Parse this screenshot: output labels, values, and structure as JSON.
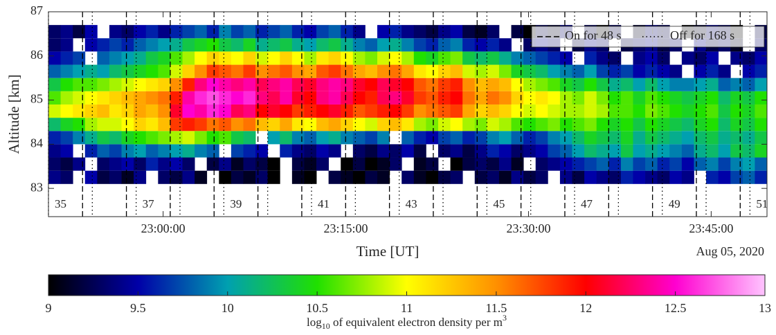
{
  "chart_data": {
    "type": "heatmap",
    "ylabel": "Altitude [km]",
    "xlabel": "Time [UT]",
    "date": "Aug 05, 2020",
    "xlim": [
      "22:50:35",
      "23:49:35"
    ],
    "xticks": [
      "23:00:00",
      "23:15:00",
      "23:30:00",
      "23:45:00"
    ],
    "ylim": [
      82.36,
      87
    ],
    "yticks": [
      83,
      84,
      85,
      86,
      87
    ],
    "x_edges": [
      "22:50:35",
      "22:51:35",
      "22:52:35",
      "22:53:35",
      "22:54:35",
      "22:55:35",
      "22:56:35",
      "22:57:35",
      "22:58:35",
      "22:59:35",
      "23:00:35",
      "23:01:35",
      "23:02:35",
      "23:03:35",
      "23:04:35",
      "23:05:35",
      "23:06:35",
      "23:07:35",
      "23:08:35",
      "23:09:35",
      "23:10:35",
      "23:11:35",
      "23:12:35",
      "23:13:35",
      "23:14:35",
      "23:15:35",
      "23:16:35",
      "23:17:35",
      "23:18:35",
      "23:19:35",
      "23:20:35",
      "23:21:35",
      "23:22:35",
      "23:23:35",
      "23:24:35",
      "23:25:35",
      "23:26:35",
      "23:27:35",
      "23:28:35",
      "23:29:35",
      "23:30:35",
      "23:31:35",
      "23:32:35",
      "23:33:35",
      "23:34:35",
      "23:35:35",
      "23:36:35",
      "23:37:35",
      "23:38:35",
      "23:39:35",
      "23:40:35",
      "23:41:35",
      "23:42:35",
      "23:43:35",
      "23:44:35",
      "23:45:35",
      "23:46:35",
      "23:47:35",
      "23:48:35",
      "23:49:35"
    ],
    "y_edges": [
      83.1,
      83.4,
      83.7,
      84.0,
      84.3,
      84.6,
      84.9,
      85.2,
      85.5,
      85.8,
      86.1,
      86.4,
      86.7
    ],
    "z": [
      [
        9.4,
        9.3,
        null,
        9.5,
        9.2,
        9.3,
        9.1,
        9.4,
        null,
        9.3,
        9.2,
        9.4,
        9.1,
        null,
        9.0,
        9.2,
        9.1,
        9.3,
        9.0,
        null,
        9.1,
        9.0,
        null,
        9.2,
        9.1,
        9.0,
        9.2,
        9.1,
        null,
        9.3,
        9.1,
        9.0,
        9.2,
        9.3,
        null,
        9.2,
        9.3,
        9.1,
        9.4,
        9.2,
        9.3,
        null,
        9.4,
        9.2,
        9.5,
        9.4,
        9.3,
        9.6,
        9.5,
        9.4,
        9.3,
        9.5,
        9.4,
        null,
        9.6,
        9.5,
        9.7,
        9.8,
        9.6
      ],
      [
        9.3,
        9.2,
        9.4,
        null,
        9.3,
        9.4,
        9.5,
        9.3,
        9.6,
        9.4,
        9.5,
        9.3,
        null,
        9.2,
        9.4,
        9.1,
        9.3,
        9.2,
        9.0,
        null,
        9.2,
        9.1,
        9.3,
        null,
        9.0,
        9.2,
        9.0,
        9.1,
        9.3,
        null,
        9.1,
        9.2,
        null,
        9.0,
        9.2,
        9.3,
        9.2,
        9.4,
        9.1,
        null,
        9.3,
        9.4,
        9.5,
        9.6,
        9.7,
        9.8,
        9.6,
        9.9,
        9.7,
        9.8,
        9.6,
        9.7,
        9.5,
        9.8,
        9.9,
        9.7,
        9.9,
        10.0,
        9.8
      ],
      [
        9.4,
        9.5,
        null,
        9.6,
        9.8,
        9.7,
        9.9,
        10.0,
        9.8,
        9.9,
        10.0,
        10.1,
        9.9,
        9.8,
        null,
        9.7,
        9.6,
        9.5,
        null,
        9.6,
        9.4,
        9.3,
        9.5,
        9.4,
        null,
        9.3,
        9.2,
        9.4,
        9.3,
        9.5,
        9.2,
        null,
        9.3,
        9.4,
        9.2,
        9.4,
        9.6,
        9.5,
        9.3,
        9.4,
        9.5,
        9.7,
        9.8,
        10.0,
        10.2,
        10.1,
        10.0,
        10.3,
        10.0,
        10.1,
        10.0,
        9.9,
        9.8,
        10.1,
        10.2,
        10.0,
        10.3,
        10.2,
        10.4
      ],
      [
        9.6,
        9.7,
        9.9,
        10.1,
        10.3,
        10.2,
        10.4,
        10.5,
        10.6,
        10.7,
        10.8,
        10.9,
        10.7,
        10.5,
        10.6,
        10.3,
        10.2,
        null,
        10.0,
        10.2,
        9.9,
        9.8,
        10.0,
        10.1,
        9.9,
        9.8,
        9.7,
        9.9,
        null,
        9.8,
        9.6,
        9.5,
        9.7,
        9.8,
        9.6,
        9.7,
        9.9,
        10.0,
        9.8,
        9.6,
        9.7,
        9.9,
        10.0,
        10.2,
        10.4,
        10.3,
        10.2,
        10.4,
        10.1,
        10.3,
        10.2,
        10.1,
        10.0,
        10.2,
        10.3,
        10.1,
        10.2,
        10.1,
        10.3
      ],
      [
        10.2,
        10.4,
        10.5,
        10.8,
        10.9,
        10.9,
        11.0,
        11.2,
        11.1,
        11.3,
        11.8,
        11.9,
        11.8,
        11.6,
        11.7,
        11.5,
        11.6,
        11.3,
        11.2,
        11.4,
        11.1,
        11.0,
        11.3,
        11.4,
        11.2,
        11.0,
        10.9,
        11.2,
        11.3,
        11.1,
        10.8,
        10.7,
        10.9,
        11.0,
        10.8,
        10.7,
        10.9,
        10.8,
        10.6,
        10.5,
        10.6,
        10.7,
        10.5,
        10.6,
        10.7,
        10.5,
        10.4,
        10.5,
        10.3,
        10.5,
        10.4,
        10.3,
        10.2,
        10.4,
        10.5,
        10.2,
        10.4,
        10.3,
        10.5
      ],
      [
        10.9,
        11.0,
        11.1,
        11.2,
        11.3,
        11.1,
        11.2,
        11.4,
        11.3,
        11.5,
        12.1,
        12.5,
        12.4,
        12.6,
        12.5,
        12.2,
        12.3,
        12.0,
        12.1,
        12.0,
        11.8,
        11.9,
        12.0,
        12.1,
        11.9,
        11.7,
        11.8,
        11.9,
        12.0,
        11.8,
        11.5,
        11.6,
        11.7,
        11.8,
        11.4,
        11.2,
        11.3,
        11.2,
        11.0,
        10.9,
        11.0,
        10.9,
        10.8,
        10.8,
        10.9,
        10.8,
        10.6,
        10.6,
        10.5,
        10.7,
        10.6,
        10.5,
        10.4,
        10.5,
        10.6,
        10.3,
        10.5,
        10.4,
        10.6
      ],
      [
        10.6,
        10.8,
        10.9,
        11.0,
        11.1,
        11.2,
        11.3,
        11.4,
        11.5,
        11.6,
        11.9,
        12.4,
        12.6,
        12.7,
        12.6,
        12.5,
        12.6,
        12.3,
        12.2,
        12.4,
        12.1,
        12.0,
        12.3,
        12.4,
        12.2,
        12.0,
        11.9,
        12.2,
        12.3,
        12.1,
        11.8,
        11.7,
        11.9,
        12.0,
        11.6,
        11.4,
        11.6,
        11.5,
        11.2,
        11.0,
        11.1,
        11.0,
        10.8,
        10.7,
        10.9,
        10.7,
        10.5,
        10.6,
        10.4,
        10.6,
        10.5,
        10.4,
        10.3,
        10.4,
        10.5,
        10.2,
        10.4,
        10.3,
        10.5
      ],
      [
        10.3,
        10.5,
        10.6,
        10.6,
        10.7,
        10.8,
        10.9,
        11.0,
        11.1,
        11.2,
        11.5,
        11.9,
        12.3,
        12.5,
        12.4,
        12.3,
        12.4,
        12.2,
        12.3,
        12.4,
        12.2,
        12.1,
        12.3,
        12.4,
        12.3,
        12.1,
        12.0,
        12.2,
        12.1,
        12.0,
        11.7,
        11.6,
        11.8,
        11.9,
        11.5,
        11.3,
        11.4,
        11.3,
        11.0,
        10.8,
        10.7,
        10.6,
        10.4,
        10.3,
        10.5,
        10.3,
        10.1,
        10.2,
        10.0,
        10.2,
        10.0,
        9.9,
        9.9,
        10.0,
        10.1,
        9.8,
        9.9,
        9.8,
        10.0
      ],
      [
        9.8,
        9.9,
        10.0,
        10.1,
        10.0,
        10.2,
        10.3,
        10.4,
        10.5,
        10.6,
        10.9,
        11.2,
        11.5,
        11.8,
        11.7,
        11.6,
        11.8,
        11.5,
        11.6,
        11.7,
        11.5,
        11.4,
        11.7,
        11.8,
        11.6,
        11.4,
        11.3,
        11.5,
        11.6,
        11.4,
        11.1,
        11.0,
        11.2,
        11.3,
        10.9,
        10.8,
        10.9,
        10.7,
        10.4,
        10.3,
        10.2,
        10.0,
        9.9,
        9.8,
        10.0,
        9.7,
        9.6,
        9.7,
        9.5,
        9.6,
        9.5,
        9.4,
        null,
        9.5,
        9.6,
        9.4,
        null,
        9.5,
        9.6
      ],
      [
        9.5,
        9.6,
        9.7,
        null,
        9.8,
        9.9,
        10.0,
        10.1,
        10.3,
        10.4,
        10.6,
        10.8,
        11.0,
        11.2,
        11.1,
        11.0,
        11.2,
        10.9,
        11.0,
        11.2,
        11.0,
        10.8,
        11.1,
        11.2,
        11.0,
        10.8,
        10.7,
        10.9,
        11.0,
        10.8,
        10.5,
        10.4,
        10.6,
        10.7,
        10.3,
        10.2,
        10.3,
        10.1,
        9.9,
        9.8,
        9.7,
        9.6,
        9.5,
        null,
        9.6,
        9.4,
        9.3,
        null,
        9.4,
        9.5,
        9.3,
        null,
        9.4,
        9.3,
        9.5,
        null,
        9.4,
        9.3,
        9.5
      ],
      [
        9.3,
        9.4,
        null,
        9.5,
        9.6,
        9.7,
        9.6,
        9.8,
        9.9,
        10.0,
        10.1,
        10.3,
        10.4,
        10.5,
        10.3,
        10.2,
        10.4,
        10.1,
        10.2,
        10.3,
        10.1,
        10.0,
        10.2,
        10.3,
        10.1,
        9.9,
        9.8,
        10.0,
        10.1,
        9.9,
        9.7,
        9.6,
        9.8,
        9.9,
        9.6,
        9.5,
        9.6,
        9.4,
        null,
        9.3,
        9.4,
        9.3,
        null,
        9.2,
        9.4,
        9.3,
        null,
        9.2,
        9.3,
        9.4,
        9.2,
        9.3,
        null,
        9.4,
        9.2,
        9.3,
        9.1,
        null,
        9.3
      ],
      [
        9.3,
        9.4,
        9.2,
        9.5,
        null,
        9.4,
        9.3,
        9.5,
        9.6,
        9.4,
        9.6,
        9.7,
        9.8,
        9.6,
        9.9,
        9.7,
        9.8,
        9.6,
        9.7,
        9.8,
        9.6,
        9.5,
        9.7,
        9.8,
        9.6,
        9.4,
        null,
        9.5,
        9.6,
        9.4,
        9.3,
        9.2,
        9.4,
        9.5,
        9.2,
        9.1,
        9.3,
        null,
        9.2,
        9.0,
        9.2,
        9.1,
        9.3,
        null,
        9.2,
        9.0,
        9.2,
        null,
        9.1,
        9.3,
        9.2,
        null,
        9.0,
        9.1,
        9.3,
        9.2,
        9.0,
        null,
        9.2
      ]
    ],
    "heating_on": [
      "22:53:23",
      "22:56:59",
      "23:00:35",
      "23:04:11",
      "23:07:47",
      "23:11:23",
      "23:14:59",
      "23:18:35",
      "23:22:11",
      "23:25:47",
      "23:29:23",
      "23:32:59",
      "23:36:35",
      "23:40:11",
      "23:43:47",
      "23:47:23"
    ],
    "heating_off": [
      "22:50:35",
      "22:54:11",
      "22:57:47",
      "23:01:23",
      "23:04:59",
      "23:08:35",
      "23:12:11",
      "23:15:47",
      "23:19:23",
      "23:22:59",
      "23:26:35",
      "23:30:11",
      "23:33:47",
      "23:37:23",
      "23:40:59",
      "23:44:35",
      "23:48:11"
    ],
    "cycle_labels": [
      "35",
      "37",
      "39",
      "41",
      "43",
      "45",
      "47",
      "49",
      "51"
    ],
    "legend": {
      "loc": "upper right",
      "on": "On for 48 s",
      "off": "Off for 168 s"
    },
    "colorbar": {
      "clim": [
        9,
        13
      ],
      "ticks": [
        9,
        9.5,
        10,
        10.5,
        11,
        11.5,
        12,
        12.5,
        13
      ],
      "colors": [
        "#000000",
        "#0000a8",
        "#00a0b0",
        "#20e000",
        "#ffff00",
        "#ff9000",
        "#ff0000",
        "#ff00d0",
        "#ffc4ff"
      ],
      "label": {
        "pre": "log",
        "sub": "10",
        "mid": " of equivalent electron density per m",
        "sup": "3"
      }
    }
  }
}
